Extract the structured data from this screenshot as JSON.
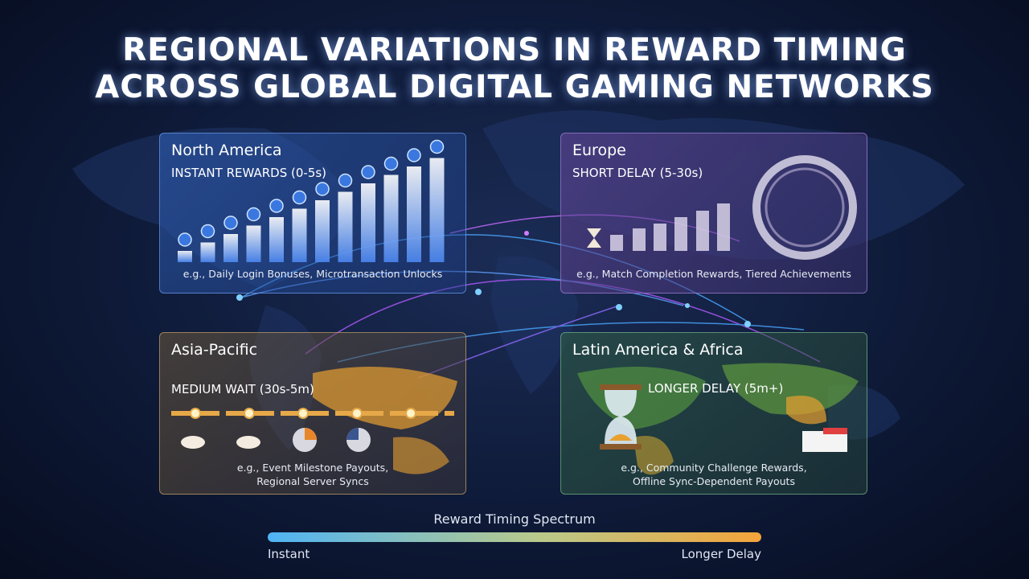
{
  "header": {
    "title_lines": [
      "REGIONAL VARIATIONS IN REWARD TIMING",
      "ACROSS GLOBAL DIGITAL GAMING NETWORKS"
    ]
  },
  "panels": [
    {
      "region": "North America",
      "timing": "INSTANT REWARDS (0-5s)",
      "examples": [
        "e.g., Daily Login Bonuses, Microtransaction Unlocks"
      ]
    },
    {
      "region": "Europe",
      "timing": "SHORT DELAY (5-30s)",
      "examples": [
        "e.g., Match Completion Rewards, Tiered Achievements"
      ]
    },
    {
      "region": "Asia-Pacific",
      "timing": "MEDIUM WAIT (30s-5m)",
      "examples": [
        "e.g., Event Milestone Payouts,",
        "Regional Server Syncs"
      ]
    },
    {
      "region": "Latin America & Africa",
      "timing": "LONGER DELAY (5m+)",
      "examples": [
        "e.g., Community Challenge Rewards,",
        "Offline Sync-Dependent Payouts"
      ]
    }
  ],
  "spectrum": {
    "title": "Reward Timing Spectrum",
    "start": "Instant",
    "end": "Longer Delay"
  }
}
